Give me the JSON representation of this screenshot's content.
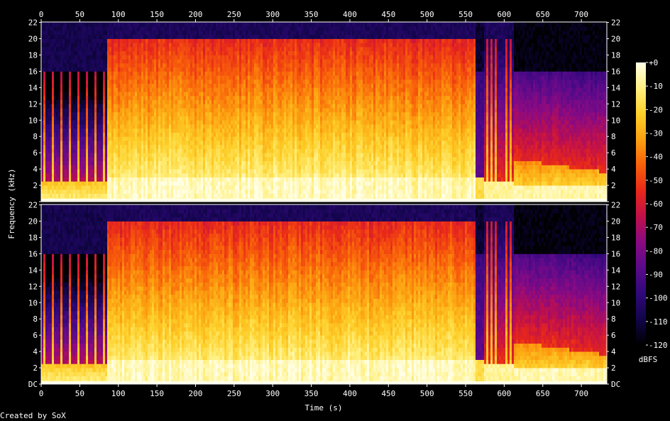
{
  "chart_data": {
    "type": "heatmap",
    "title": "",
    "xlabel": "Time (s)",
    "ylabel": "Frequency (kHz)",
    "xlim": [
      0,
      733
    ],
    "ylim": [
      0,
      22.05
    ],
    "x_ticks": [
      "0",
      "50",
      "100",
      "150",
      "200",
      "250",
      "300",
      "350",
      "400",
      "450",
      "500",
      "550",
      "600",
      "650",
      "700"
    ],
    "y_ticks": [
      "DC",
      "2",
      "4",
      "6",
      "8",
      "10",
      "12",
      "14",
      "16",
      "18",
      "20",
      "22"
    ],
    "channels": 2,
    "colorbar": {
      "label": "dBFS",
      "range": [
        -120,
        0
      ],
      "ticks": [
        "+0",
        "-10",
        "-20",
        "-30",
        "-40",
        "-50",
        "-60",
        "-70",
        "-80",
        "-90",
        "-100",
        "-110",
        "-120"
      ],
      "colors": [
        "#000000",
        "#12054a",
        "#30087a",
        "#5a0a8a",
        "#8a0a82",
        "#c0104a",
        "#e8281a",
        "#f8600a",
        "#fca010",
        "#fdd02a",
        "#fff080",
        "#ffffe8"
      ]
    },
    "segments": [
      {
        "t_start": 0,
        "t_end": 85,
        "description": "intro with sparse transient pulses",
        "cutoff_khz": 16
      },
      {
        "t_start": 85,
        "t_end": 562,
        "description": "dense broadband content",
        "cutoff_khz": 20
      },
      {
        "t_start": 562,
        "t_end": 573,
        "description": "gap",
        "cutoff_khz": 16
      },
      {
        "t_start": 573,
        "t_end": 612,
        "description": "broadband pulses",
        "cutoff_khz": 20
      },
      {
        "t_start": 612,
        "t_end": 733,
        "description": "low-pass decaying content",
        "cutoff_khz": 16
      }
    ],
    "footer": "Created by SoX"
  }
}
